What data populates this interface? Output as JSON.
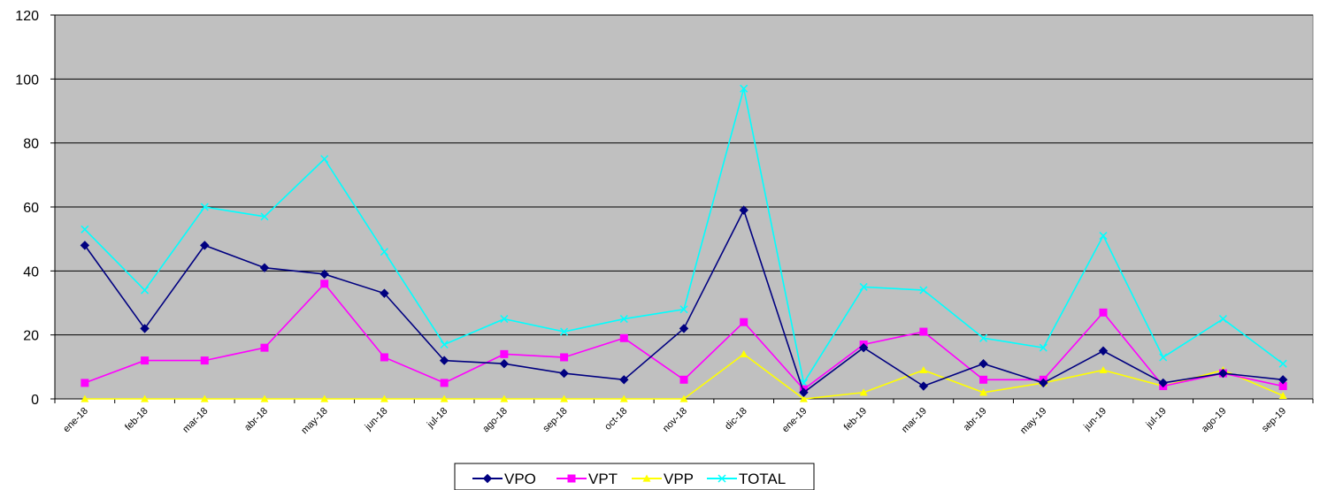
{
  "chart_data": {
    "type": "line",
    "title": "",
    "xlabel": "",
    "ylabel": "",
    "ylim": [
      0,
      120
    ],
    "yticks": [
      0,
      20,
      40,
      60,
      80,
      100,
      120
    ],
    "grid": true,
    "legend_position": "bottom",
    "plot_background": "#c0c0c0",
    "categories": [
      "ene-18",
      "feb-18",
      "mar-18",
      "abr-18",
      "may-18",
      "jun-18",
      "jul-18",
      "ago-18",
      "sep-18",
      "oct-18",
      "nov-18",
      "dic-18",
      "ene-19",
      "feb-19",
      "mar-19",
      "abr-19",
      "may-19",
      "jun-19",
      "jul-19",
      "ago-19",
      "sep-19"
    ],
    "series": [
      {
        "name": "VPO",
        "color": "#000080",
        "marker": "diamond",
        "values": [
          48,
          22,
          48,
          41,
          39,
          33,
          12,
          11,
          8,
          6,
          22,
          59,
          2,
          16,
          4,
          11,
          5,
          15,
          5,
          8,
          6
        ]
      },
      {
        "name": "VPT",
        "color": "#ff00ff",
        "marker": "square",
        "values": [
          5,
          12,
          12,
          16,
          36,
          13,
          5,
          14,
          13,
          19,
          6,
          24,
          3,
          17,
          21,
          6,
          6,
          27,
          4,
          8,
          4
        ]
      },
      {
        "name": "VPP",
        "color": "#ffff00",
        "marker": "triangle",
        "values": [
          0,
          0,
          0,
          0,
          0,
          0,
          0,
          0,
          0,
          0,
          0,
          14,
          0,
          2,
          9,
          2,
          5,
          9,
          4,
          9,
          1
        ]
      },
      {
        "name": "TOTAL",
        "color": "#00ffff",
        "marker": "x",
        "values": [
          53,
          34,
          60,
          57,
          75,
          46,
          17,
          25,
          21,
          25,
          28,
          97,
          5,
          35,
          34,
          19,
          16,
          51,
          13,
          25,
          11
        ]
      }
    ]
  }
}
